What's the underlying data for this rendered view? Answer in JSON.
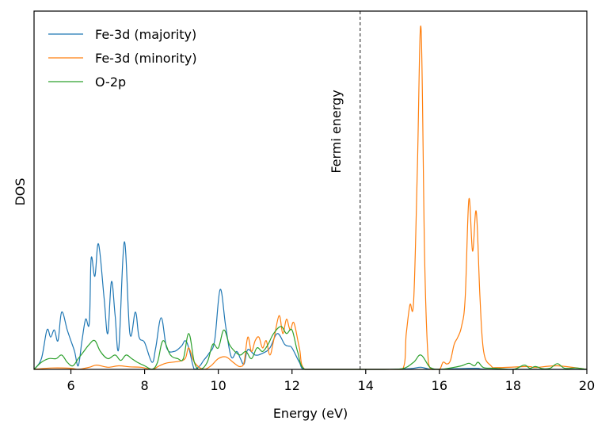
{
  "chart_data": {
    "type": "line",
    "title": "",
    "xlabel": "Energy (eV)",
    "ylabel": "DOS",
    "xlim": [
      5,
      20
    ],
    "ylim": [
      0,
      1
    ],
    "xticks": [
      6,
      8,
      10,
      12,
      14,
      16,
      18,
      20
    ],
    "xtick_labels": [
      "6",
      "8",
      "10",
      "12",
      "14",
      "16",
      "18",
      "20"
    ],
    "yticks_visible": false,
    "grid": false,
    "legend_placement": "top-left",
    "annotations": [
      {
        "type": "vline",
        "x": 13.85,
        "style": "dashed",
        "color": "#000000",
        "label": "Fermi energy"
      }
    ],
    "series": [
      {
        "name": "Fe-3d (majority)",
        "color": "#1f77b4",
        "x": [
          5.0,
          5.2,
          5.35,
          5.45,
          5.55,
          5.65,
          5.75,
          5.9,
          6.0,
          6.1,
          6.2,
          6.3,
          6.4,
          6.5,
          6.55,
          6.65,
          6.75,
          6.9,
          7.0,
          7.1,
          7.2,
          7.3,
          7.45,
          7.6,
          7.75,
          7.85,
          8.0,
          8.2,
          8.3,
          8.45,
          8.6,
          8.8,
          9.0,
          9.1,
          9.2,
          9.35,
          9.5,
          9.6,
          9.75,
          9.9,
          10.05,
          10.2,
          10.35,
          10.5,
          10.6,
          10.7,
          10.8,
          11.0,
          11.2,
          11.4,
          11.6,
          11.8,
          11.9,
          12.0,
          12.2,
          12.35,
          13.0,
          14.5,
          15.2,
          15.5,
          15.8,
          16.5,
          17.0,
          17.5,
          20.0
        ],
        "y": [
          0.0,
          0.03,
          0.11,
          0.09,
          0.11,
          0.08,
          0.16,
          0.11,
          0.08,
          0.05,
          0.01,
          0.08,
          0.14,
          0.13,
          0.31,
          0.26,
          0.35,
          0.2,
          0.1,
          0.245,
          0.15,
          0.06,
          0.356,
          0.1,
          0.16,
          0.09,
          0.075,
          0.02,
          0.06,
          0.144,
          0.06,
          0.05,
          0.065,
          0.08,
          0.06,
          0.0,
          0.01,
          0.025,
          0.045,
          0.08,
          0.223,
          0.12,
          0.035,
          0.05,
          0.03,
          0.015,
          0.055,
          0.04,
          0.045,
          0.06,
          0.1,
          0.07,
          0.065,
          0.06,
          0.02,
          0.0,
          0.0,
          0.0,
          0.002,
          0.006,
          0.0,
          0.002,
          0.003,
          0.0,
          0.0
        ]
      },
      {
        "name": "Fe-3d (minority)",
        "color": "#ff7f0e",
        "x": [
          5.0,
          5.5,
          6.0,
          6.2,
          6.5,
          6.7,
          7.0,
          7.3,
          7.6,
          7.9,
          8.2,
          8.4,
          8.6,
          8.9,
          9.1,
          9.2,
          9.35,
          9.6,
          9.8,
          10.0,
          10.2,
          10.4,
          10.5,
          10.6,
          10.7,
          10.8,
          10.9,
          11.0,
          11.1,
          11.2,
          11.3,
          11.4,
          11.5,
          11.65,
          11.75,
          11.85,
          11.95,
          12.05,
          12.2,
          12.35,
          13.0,
          14.5,
          15.0,
          15.1,
          15.2,
          15.3,
          15.4,
          15.5,
          15.6,
          15.7,
          15.8,
          16.0,
          16.1,
          16.2,
          16.3,
          16.4,
          16.5,
          16.6,
          16.7,
          16.8,
          16.9,
          17.0,
          17.1,
          17.2,
          17.4,
          17.6,
          18.4,
          18.6,
          19.2,
          20.0
        ],
        "y": [
          0.0,
          0.004,
          0.003,
          0.0,
          0.006,
          0.012,
          0.006,
          0.01,
          0.007,
          0.006,
          0.0,
          0.01,
          0.018,
          0.022,
          0.03,
          0.06,
          0.02,
          0.0,
          0.01,
          0.03,
          0.035,
          0.02,
          0.012,
          0.008,
          0.02,
          0.09,
          0.05,
          0.08,
          0.09,
          0.06,
          0.08,
          0.04,
          0.08,
          0.15,
          0.1,
          0.14,
          0.11,
          0.13,
          0.06,
          0.0,
          0.0,
          0.0,
          0.0,
          0.1,
          0.18,
          0.19,
          0.55,
          0.954,
          0.3,
          0.02,
          0.0,
          0.0,
          0.02,
          0.015,
          0.025,
          0.07,
          0.09,
          0.12,
          0.2,
          0.475,
          0.33,
          0.44,
          0.2,
          0.05,
          0.01,
          0.005,
          0.008,
          0.005,
          0.01,
          0.0
        ]
      },
      {
        "name": "O-2p",
        "color": "#2ca02c",
        "x": [
          5.0,
          5.2,
          5.4,
          5.6,
          5.75,
          5.9,
          6.05,
          6.2,
          6.35,
          6.5,
          6.65,
          6.8,
          7.0,
          7.2,
          7.35,
          7.5,
          7.65,
          7.8,
          8.0,
          8.2,
          8.35,
          8.5,
          8.7,
          8.9,
          9.05,
          9.2,
          9.35,
          9.5,
          9.7,
          9.85,
          10.0,
          10.15,
          10.3,
          10.45,
          10.6,
          10.75,
          10.9,
          11.05,
          11.2,
          11.35,
          11.5,
          11.7,
          11.85,
          12.0,
          12.15,
          12.35,
          13.0,
          14.5,
          15.0,
          15.3,
          15.5,
          15.75,
          16.0,
          16.3,
          16.6,
          16.8,
          16.95,
          17.05,
          17.2,
          17.5,
          18.0,
          18.3,
          18.45,
          18.6,
          18.8,
          19.0,
          19.2,
          19.4,
          19.7,
          20.0
        ],
        "y": [
          0.0,
          0.02,
          0.03,
          0.03,
          0.04,
          0.02,
          0.01,
          0.03,
          0.05,
          0.07,
          0.08,
          0.05,
          0.03,
          0.04,
          0.025,
          0.04,
          0.03,
          0.02,
          0.01,
          0.0,
          0.02,
          0.08,
          0.04,
          0.03,
          0.03,
          0.1,
          0.02,
          0.0,
          0.02,
          0.07,
          0.06,
          0.11,
          0.07,
          0.05,
          0.04,
          0.05,
          0.03,
          0.06,
          0.05,
          0.07,
          0.1,
          0.12,
          0.1,
          0.11,
          0.05,
          0.0,
          0.0,
          0.0,
          0.002,
          0.02,
          0.04,
          0.005,
          0.0,
          0.004,
          0.01,
          0.017,
          0.01,
          0.02,
          0.005,
          0.003,
          0.0,
          0.012,
          0.003,
          0.008,
          0.002,
          0.003,
          0.016,
          0.003,
          0.004,
          0.0
        ]
      }
    ]
  }
}
